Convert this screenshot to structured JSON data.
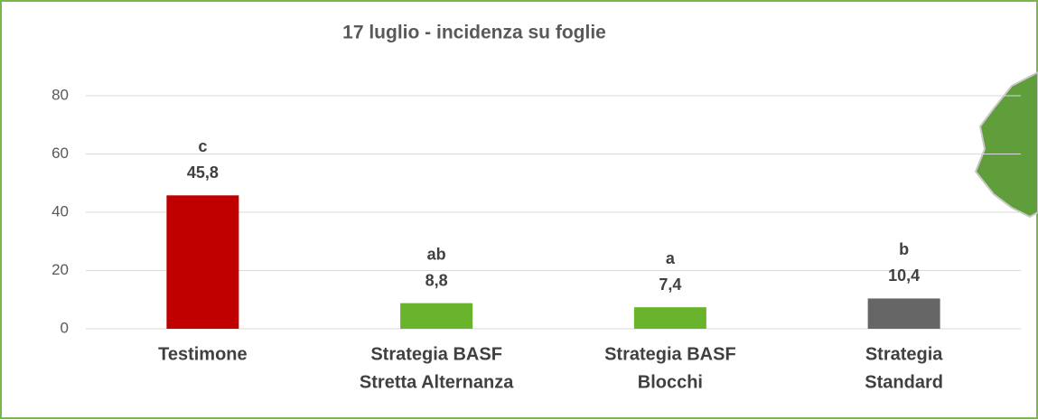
{
  "chart_data": {
    "type": "bar",
    "title": "17 luglio  -  incidenza su foglie",
    "categories": [
      [
        "Testimone"
      ],
      [
        "Strategia BASF",
        "Stretta Alternanza"
      ],
      [
        "Strategia BASF",
        "Blocchi"
      ],
      [
        "Strategia",
        "Standard"
      ]
    ],
    "values": [
      45.8,
      8.8,
      7.4,
      10.4
    ],
    "value_labels": [
      "45,8",
      "8,8",
      "7,4",
      "10,4"
    ],
    "annotations": [
      "c",
      "ab",
      "a",
      "b"
    ],
    "colors": [
      "#c00000",
      "#6ab42d",
      "#6ab42d",
      "#666666"
    ],
    "ylim": [
      0,
      80
    ],
    "yticks": [
      0,
      20,
      40,
      60,
      80
    ],
    "grid": true
  }
}
